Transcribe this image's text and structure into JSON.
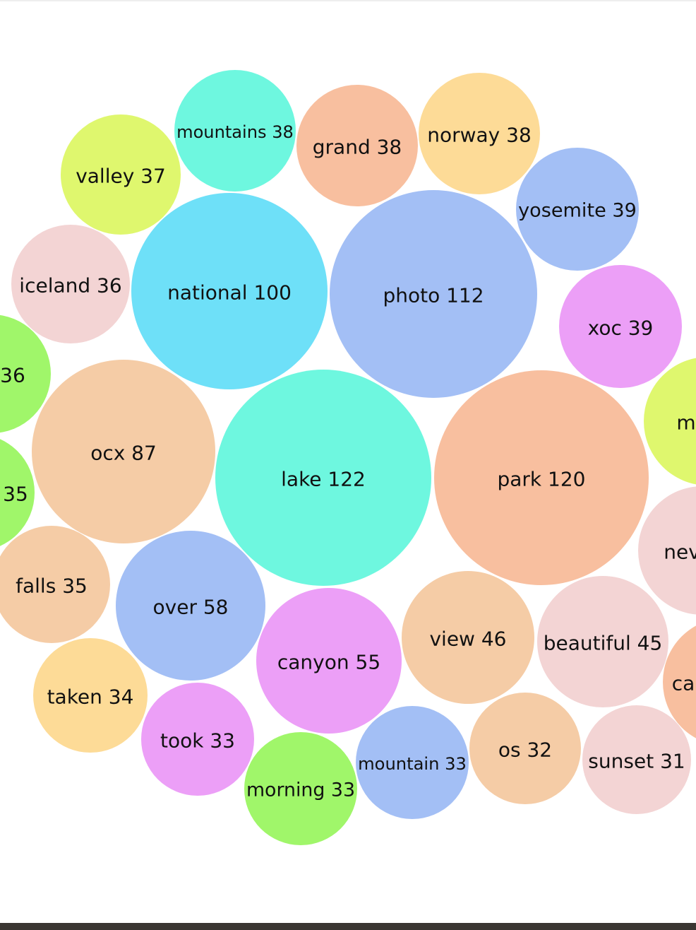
{
  "chart_data": {
    "type": "bubble",
    "items": [
      {
        "word": "lake",
        "count": 122,
        "label": "lake 122"
      },
      {
        "word": "park",
        "count": 120,
        "label": "park 120"
      },
      {
        "word": "photo",
        "count": 112,
        "label": "photo 112"
      },
      {
        "word": "national",
        "count": 100,
        "label": "national 100"
      },
      {
        "word": "ocx",
        "count": 87,
        "label": "ocx 87"
      },
      {
        "word": "over",
        "count": 58,
        "label": "over 58"
      },
      {
        "word": "canyon",
        "count": 55,
        "label": "canyon 55"
      },
      {
        "word": "view",
        "count": 46,
        "label": "view 46"
      },
      {
        "word": "beautiful",
        "count": 45,
        "label": "beautiful 45"
      },
      {
        "word": "yosemite",
        "count": 39,
        "label": "yosemite 39"
      },
      {
        "word": "xoc",
        "count": 39,
        "label": "xoc 39"
      },
      {
        "word": "mountains",
        "count": 38,
        "label": "mountains 38"
      },
      {
        "word": "grand",
        "count": 38,
        "label": "grand 38"
      },
      {
        "word": "norway",
        "count": 38,
        "label": "norway 38"
      },
      {
        "word": "valley",
        "count": 37,
        "label": "valley 37"
      },
      {
        "word": "iceland",
        "count": 36,
        "label": "iceland 36"
      },
      {
        "word": "",
        "count": 36,
        "label": "36"
      },
      {
        "word": "",
        "count": 35,
        "label": "35"
      },
      {
        "word": "falls",
        "count": 35,
        "label": "falls 35"
      },
      {
        "word": "taken",
        "count": 34,
        "label": "taken 34"
      },
      {
        "word": "took",
        "count": 33,
        "label": "took 33"
      },
      {
        "word": "morning",
        "count": 33,
        "label": "morning 33"
      },
      {
        "word": "mountain",
        "count": 33,
        "label": "mountain 33"
      },
      {
        "word": "os",
        "count": 32,
        "label": "os 32"
      },
      {
        "word": "sunset",
        "count": 31,
        "label": "sunset 31"
      },
      {
        "word": "",
        "count": null,
        "label": "m"
      },
      {
        "word": "",
        "count": null,
        "label": "nev"
      },
      {
        "word": "",
        "count": null,
        "label": "ca"
      }
    ],
    "colors": [
      "#6ef7df",
      "#f8bf9f",
      "#a3bff5",
      "#6ee0f8",
      "#f5cca6",
      "#ec9ff7",
      "#f3d4d4",
      "#fddb97",
      "#dff76e",
      "#a0f66a"
    ]
  }
}
